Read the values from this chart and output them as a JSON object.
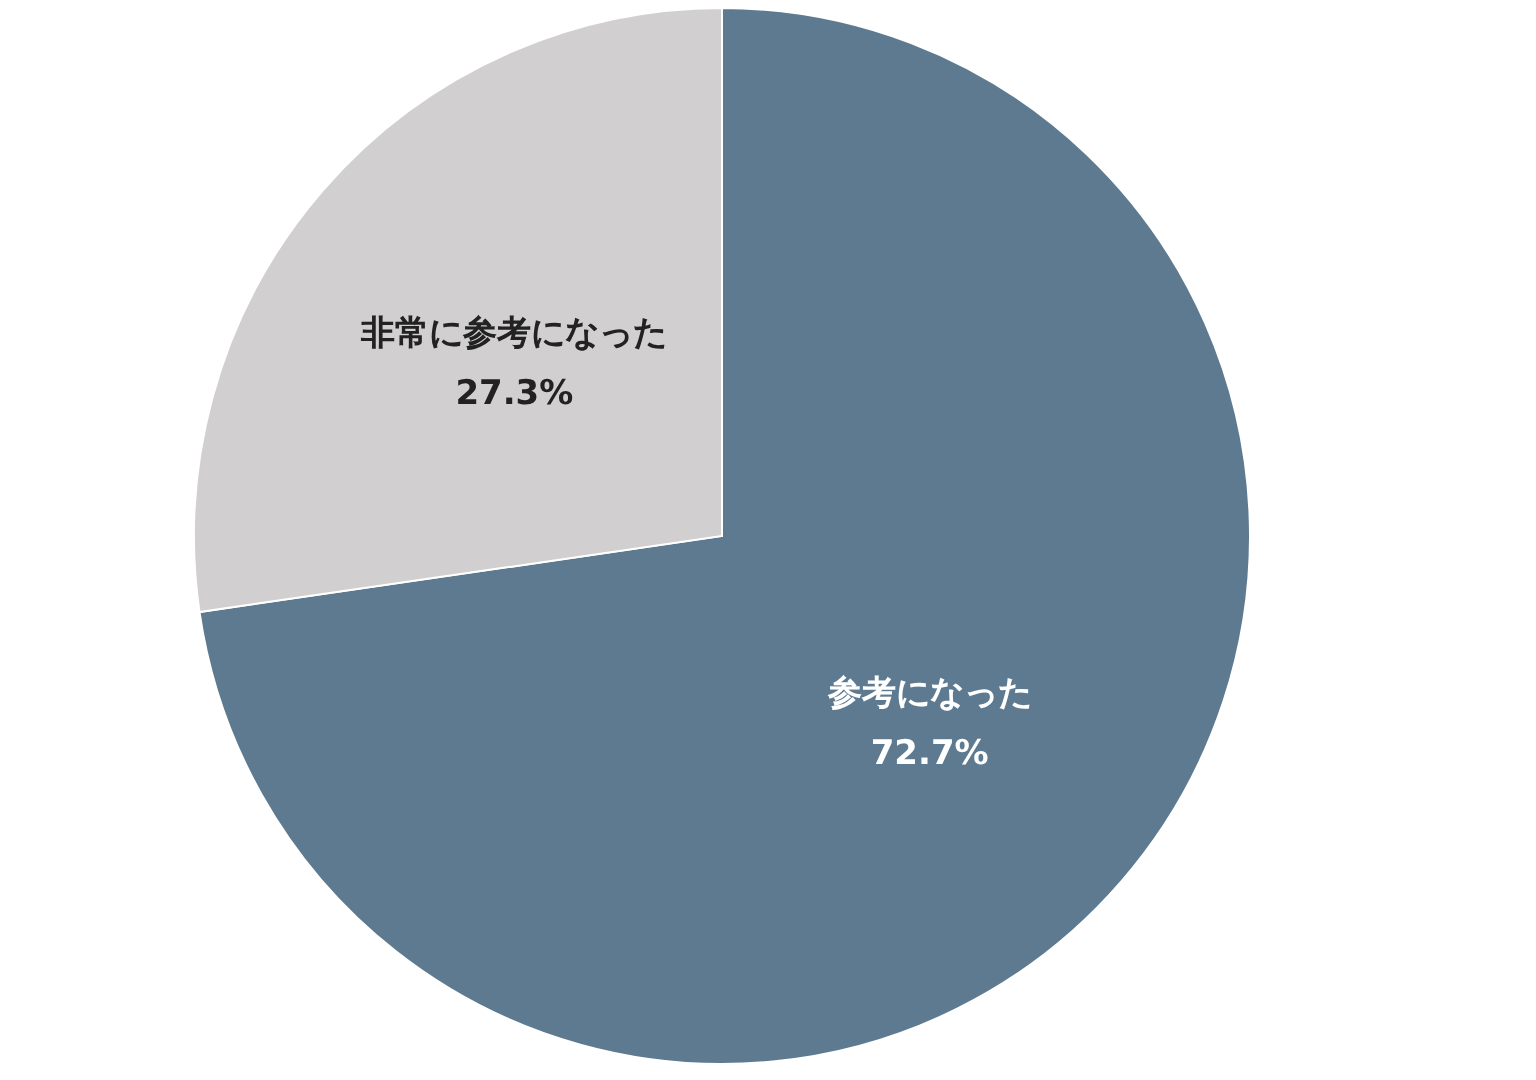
{
  "chart_data": {
    "type": "pie",
    "categories": [
      "参考になった",
      "非常に参考になった"
    ],
    "values": [
      72.7,
      27.3
    ],
    "colors": [
      "#5d7a90",
      "#d1cfd0"
    ],
    "value_labels": [
      "72.7%",
      "27.3%"
    ],
    "legend": false
  }
}
